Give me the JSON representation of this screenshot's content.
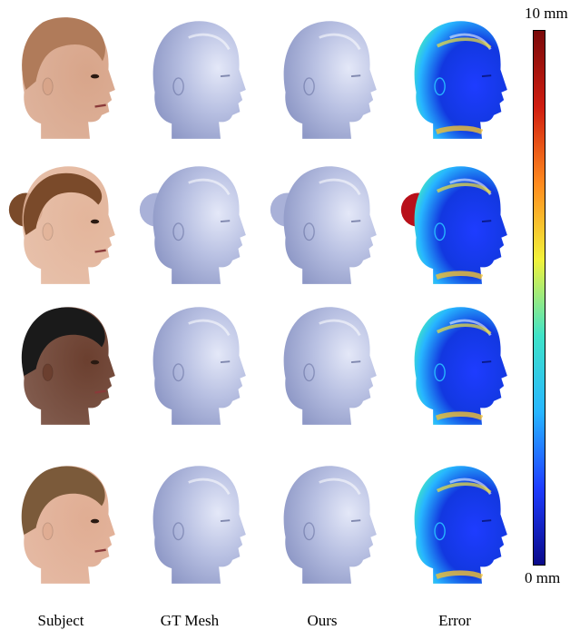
{
  "columns": [
    "Subject",
    "GT Mesh",
    "Ours",
    "Error"
  ],
  "colorbar": {
    "max_label": "10 mm",
    "min_label": "0 mm",
    "colors": [
      "#0a0a8a",
      "#1e3cff",
      "#27b6ff",
      "#3fe3c8",
      "#f2f23a",
      "#ff8a1e",
      "#d01d10",
      "#7a0a0a"
    ]
  },
  "rows": [
    {
      "subject": {
        "skin": "#d8a58a",
        "hair": "#b07b5a",
        "style": "updo"
      }
    },
    {
      "subject": {
        "skin": "#e3b59b",
        "hair": "#7a4a2a",
        "style": "bun"
      }
    },
    {
      "subject": {
        "skin": "#6b3f2f",
        "hair": "#1a1a1a",
        "style": "short"
      }
    },
    {
      "subject": {
        "skin": "#e0ad93",
        "hair": "#7b5a3a",
        "style": "short"
      }
    }
  ]
}
